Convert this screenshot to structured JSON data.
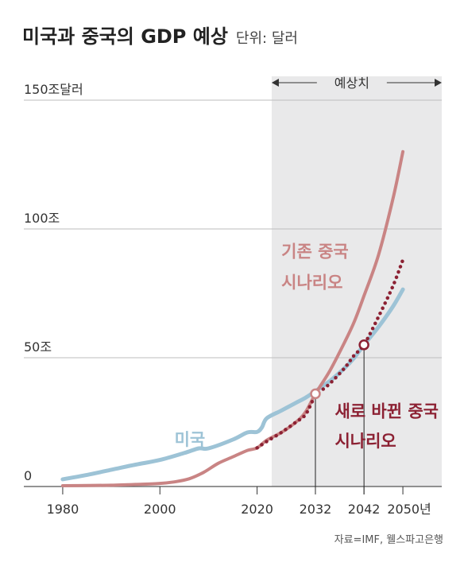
{
  "header": {
    "title": "미국과 중국의 GDP 예상",
    "unit": "단위: 달러"
  },
  "source": "자료=IMF, 웰스파고은행",
  "colors": {
    "us": "#9dc3d6",
    "china_existing": "#c98484",
    "china_new": "#8c2133",
    "forecast_bg": "#e9e9ea",
    "grid": "#bdbdbd"
  },
  "chart_data": {
    "type": "line",
    "title": "미국과 중국의 GDP 예상",
    "xlabel": "",
    "ylabel": "",
    "xlim": [
      1972,
      2058
    ],
    "ylim": [
      0,
      150
    ],
    "x_ticks": [
      1980,
      2000,
      2020,
      2032,
      2042,
      2050
    ],
    "x_tick_labels": [
      "1980",
      "2000",
      "2020",
      "2032",
      "2042",
      "2050년"
    ],
    "y_ticks": [
      0,
      50,
      100,
      150
    ],
    "y_tick_labels": [
      "0",
      "50조",
      "100조",
      "150조달러"
    ],
    "forecast_region": {
      "start": 2023,
      "end": 2058,
      "label": "예상치"
    },
    "series": [
      {
        "name": "미국",
        "color": "#9dc3d6",
        "style": "solid",
        "x": [
          1980,
          1985,
          1990,
          1995,
          2000,
          2005,
          2008,
          2010,
          2015,
          2018,
          2020,
          2021,
          2022,
          2025,
          2028,
          2030,
          2032,
          2035,
          2038,
          2040,
          2042,
          2045,
          2048,
          2050
        ],
        "y": [
          2.8,
          4.5,
          6.5,
          8.5,
          10.3,
          13,
          14.8,
          14.8,
          18.2,
          21,
          21.2,
          23,
          26.5,
          29.5,
          32.5,
          34.5,
          37,
          41,
          46,
          50,
          55,
          62,
          70,
          76.5
        ]
      },
      {
        "name": "기존 중국 시나리오",
        "color": "#c98484",
        "style": "solid",
        "x": [
          1980,
          1985,
          1990,
          1995,
          2000,
          2003,
          2006,
          2009,
          2012,
          2015,
          2018,
          2020,
          2022,
          2025,
          2028,
          2030,
          2032,
          2035,
          2038,
          2040,
          2042,
          2045,
          2048,
          2050
        ],
        "y": [
          0.3,
          0.4,
          0.5,
          0.8,
          1.2,
          1.8,
          3,
          5.5,
          9,
          11.5,
          14,
          15,
          18,
          21,
          25,
          29,
          36,
          45,
          56,
          64,
          74,
          90,
          112,
          130
        ]
      },
      {
        "name": "새로 바뀐 중국 시나리오",
        "color": "#8c2133",
        "style": "dotted",
        "x": [
          2020,
          2022,
          2025,
          2028,
          2030,
          2032,
          2035,
          2038,
          2040,
          2042,
          2045,
          2048,
          2050
        ],
        "y": [
          15,
          17.5,
          21,
          25,
          28,
          35,
          40,
          46,
          51,
          55,
          66,
          78,
          88
        ]
      }
    ],
    "annotations": [
      {
        "text": "미국",
        "x": 2003,
        "y": 16,
        "color": "#9dc3d6"
      },
      {
        "text": "기존 중국",
        "x": 2025,
        "y": 89,
        "color": "#c98484"
      },
      {
        "text": "시나리오",
        "x": 2025,
        "y": 77,
        "color": "#c98484"
      },
      {
        "text": "새로 바뀐 중국",
        "x": 2036,
        "y": 27,
        "color": "#8c2133"
      },
      {
        "text": "시나리오",
        "x": 2036,
        "y": 15.5,
        "color": "#8c2133"
      }
    ],
    "markers": [
      {
        "x": 2032,
        "y": 36,
        "style": "open-white"
      },
      {
        "x": 2042,
        "y": 55,
        "style": "open-dark"
      }
    ],
    "grid": true
  }
}
